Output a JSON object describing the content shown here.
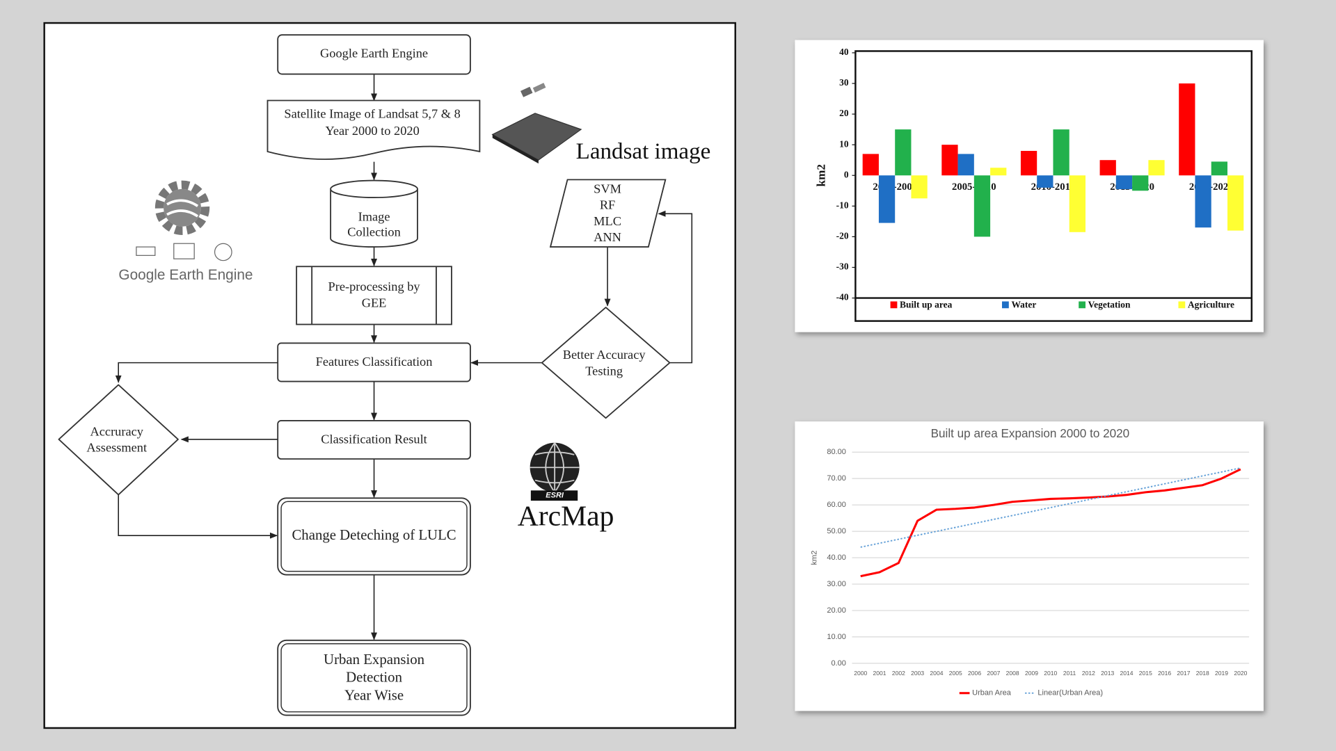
{
  "diagram": {
    "nodes": [
      {
        "lines": [
          "Google Earth Engine"
        ]
      },
      {
        "lines": [
          "Satellite Image of Landsat 5,7 & 8",
          "Year 2000 to 2020"
        ]
      },
      {
        "lines": [
          "Image",
          "Collection"
        ]
      },
      {
        "lines": [
          "Pre-processing by",
          "GEE"
        ]
      },
      {
        "lines": [
          "Features Classification"
        ]
      },
      {
        "lines": [
          "Classification Result"
        ]
      },
      {
        "lines": [
          "Change Deteching of LULC"
        ]
      },
      {
        "lines": [
          "Urban Expansion",
          "Detection",
          "Year Wise"
        ]
      },
      {
        "lines": [
          "SVM",
          "RF",
          "MLC",
          "ANN"
        ]
      },
      {
        "lines": [
          "Better Accuracy",
          "Testing"
        ]
      },
      {
        "lines": [
          "Accruracy",
          "Assessment"
        ]
      }
    ],
    "labels": {
      "landsat": "Landsat image",
      "gee_logo": "Google Earth Engine",
      "esri": "ESRI",
      "arcmap": "ArcMap"
    }
  },
  "chart_data": [
    {
      "type": "bar",
      "ylabel": "km2",
      "categories": [
        "2000-2005",
        "2005-2010",
        "2010-2015",
        "2015-2020",
        "2000-2020"
      ],
      "series": [
        {
          "name": "Built up area",
          "color": "#ff0000",
          "values": [
            7,
            10,
            8,
            5,
            30
          ]
        },
        {
          "name": "Water",
          "color": "#1f6fc5",
          "values": [
            -15.5,
            7,
            -4,
            -4.5,
            -17
          ]
        },
        {
          "name": "Vegetation",
          "color": "#22b14c",
          "values": [
            15,
            -20,
            15,
            -5,
            4.5
          ]
        },
        {
          "name": "Agriculture",
          "color": "#ffff33",
          "values": [
            -7.5,
            2.5,
            -18.5,
            5,
            -18
          ]
        }
      ],
      "ylim": [
        -40,
        40
      ],
      "yticks": [
        -40,
        -30,
        -20,
        -10,
        0,
        10,
        20,
        30,
        40
      ],
      "grid": false,
      "legend": "bottom"
    },
    {
      "type": "line",
      "title": "Built up area Expansion 2000 to 2020",
      "ylabel": "km2",
      "categories": [
        "2000",
        "2001",
        "2002",
        "2003",
        "2004",
        "2005",
        "2006",
        "2007",
        "2008",
        "2009",
        "2010",
        "2011",
        "2012",
        "2013",
        "2014",
        "2015",
        "2016",
        "2017",
        "2018",
        "2019",
        "2020"
      ],
      "series": [
        {
          "name": "Urban Area",
          "color": "#ff0000",
          "values": [
            33,
            34.5,
            38,
            54,
            58.2,
            58.5,
            59,
            60,
            61.2,
            61.7,
            62.3,
            62.5,
            62.8,
            63.2,
            63.8,
            64.8,
            65.5,
            66.5,
            67.5,
            70,
            73.5
          ]
        },
        {
          "name": "Linear(Urban Area)",
          "color": "#5b9bd5",
          "dashed": true,
          "values": [
            44,
            45.5,
            47,
            48.5,
            50,
            51.5,
            53,
            54.5,
            56,
            57.5,
            59,
            60.5,
            62,
            63.5,
            65,
            66.5,
            68,
            69.5,
            71,
            72.5,
            74
          ]
        }
      ],
      "ylim": [
        0,
        80
      ],
      "yticks": [
        {
          "value": 0,
          "label": "0.00"
        },
        {
          "value": 10,
          "label": "10.00"
        },
        {
          "value": 20,
          "label": "20.00"
        },
        {
          "value": 30,
          "label": "30.00"
        },
        {
          "value": 40,
          "label": "40.00"
        },
        {
          "value": 50,
          "label": "50.00"
        },
        {
          "value": 60,
          "label": "60.00"
        },
        {
          "value": 70,
          "label": "70.00"
        },
        {
          "value": 80,
          "label": "80.00"
        }
      ],
      "grid": true,
      "legend": "bottom"
    }
  ]
}
